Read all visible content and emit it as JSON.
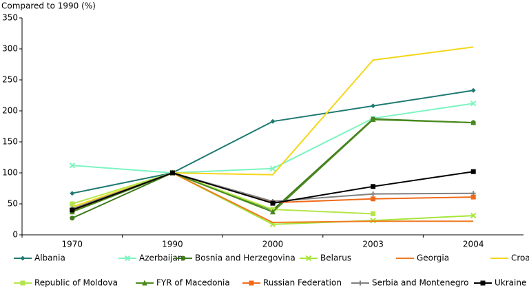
{
  "chart_data": {
    "type": "line",
    "y_label": "Compared to 1990 (%)",
    "categories": [
      "1970",
      "1990",
      "2000",
      "2003",
      "2004"
    ],
    "ylim": [
      0,
      350
    ],
    "yticks": [
      0,
      50,
      100,
      150,
      200,
      250,
      300,
      350
    ],
    "series": [
      {
        "name": "Albania",
        "color": "#1f7a72",
        "marker": "diamond",
        "values": [
          67,
          100,
          183,
          208,
          233
        ]
      },
      {
        "name": "Azerbaijan",
        "color": "#7cf5c0",
        "marker": "cross",
        "values": [
          112,
          100,
          107,
          188,
          212
        ]
      },
      {
        "name": "Bosnia and Herzegovina",
        "color": "#3d7a1c",
        "marker": "circle",
        "values": [
          27,
          100,
          40,
          187,
          181
        ]
      },
      {
        "name": "Belarus",
        "color": "#a6e63a",
        "marker": "cross",
        "values": [
          45,
          100,
          17,
          23,
          31
        ]
      },
      {
        "name": "Georgia",
        "color": "#f07a20",
        "marker": "none",
        "values": [
          38,
          100,
          20,
          22,
          22
        ]
      },
      {
        "name": "Croatia",
        "color": "#f5d619",
        "marker": "none",
        "values": [
          45,
          100,
          97,
          282,
          303
        ]
      },
      {
        "name": "Republic of Moldova",
        "color": "#b4e64a",
        "marker": "square",
        "values": [
          50,
          100,
          41,
          34,
          null
        ]
      },
      {
        "name": "FYR of Macedonia",
        "color": "#4a8a1c",
        "marker": "triangle",
        "values": [
          37,
          100,
          37,
          186,
          181
        ]
      },
      {
        "name": "Russian Federation",
        "color": "#f06a1a",
        "marker": "square",
        "values": [
          40,
          100,
          52,
          58,
          61
        ]
      },
      {
        "name": "Serbia and Montenegro",
        "color": "#808080",
        "marker": "plus",
        "values": [
          42,
          100,
          54,
          66,
          67
        ]
      },
      {
        "name": "Ukraine",
        "color": "#000000",
        "marker": "square",
        "values": [
          40,
          100,
          51,
          78,
          102
        ]
      }
    ]
  }
}
